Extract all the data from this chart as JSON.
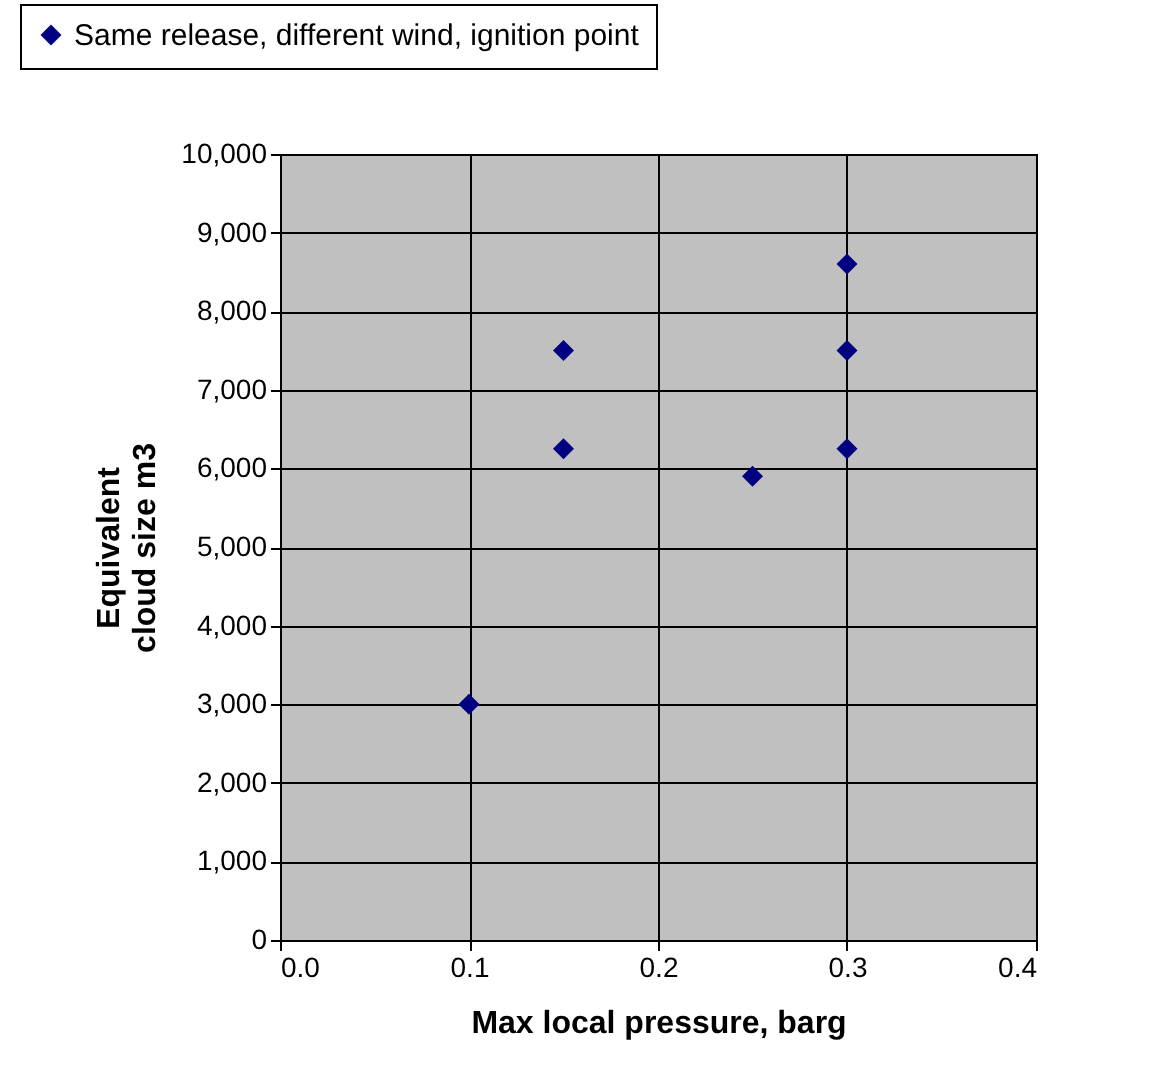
{
  "chart_data": {
    "type": "scatter",
    "xlabel": "Max local pressure, barg",
    "ylabel": "Equivalent cloud size m3",
    "series": [
      {
        "name": "Same release, different wind, ignition point",
        "color": "#000080",
        "x": [
          0.1,
          0.15,
          0.15,
          0.25,
          0.3,
          0.3,
          0.3
        ],
        "values": [
          3000,
          7500,
          6250,
          5900,
          8600,
          7500,
          6250
        ]
      }
    ],
    "xlim": [
      0,
      0.4
    ],
    "xticks": [
      {
        "value": 0,
        "label": "0.0"
      },
      0.1,
      0.2,
      0.3,
      0.4
    ],
    "ylim": [
      0,
      10000
    ],
    "yticks": [
      {
        "value": 0,
        "label": "0"
      },
      {
        "value": 1000,
        "label": "1,000"
      },
      {
        "value": 2000,
        "label": "2,000"
      },
      {
        "value": 3000,
        "label": "3,000"
      },
      {
        "value": 4000,
        "label": "4,000"
      },
      {
        "value": 5000,
        "label": "5,000"
      },
      {
        "value": 6000,
        "label": "6,000"
      },
      {
        "value": 7000,
        "label": "7,000"
      },
      {
        "value": 8000,
        "label": "8,000"
      },
      {
        "value": 9000,
        "label": "9,000"
      },
      {
        "value": 10000,
        "label": "10,000"
      }
    ],
    "grid": true,
    "legend": "top",
    "marker": "diamond"
  }
}
